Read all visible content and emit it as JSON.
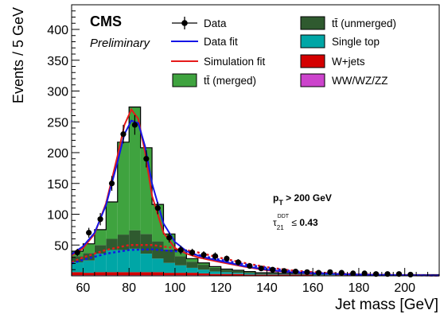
{
  "chart_data": {
    "type": "bar",
    "title": "",
    "xlabel": "Jet mass [GeV]",
    "ylabel": "Events / 5 GeV",
    "xlim": [
      55,
      215
    ],
    "ylim": [
      0,
      440
    ],
    "xticks": [
      60,
      80,
      100,
      120,
      140,
      160,
      180,
      200
    ],
    "yticks": [
      50,
      100,
      150,
      200,
      250,
      300,
      350,
      400
    ],
    "cms_label": "CMS",
    "cms_sublabel": "Preliminary",
    "annotations": {
      "pt_cut": "p_T > 200 GeV",
      "tau_cut": "τ21^DDT ≤ 0.43"
    },
    "legend": [
      {
        "name": "Data",
        "kind": "marker",
        "color": "#000000"
      },
      {
        "name": "tt̄ (unmerged)",
        "kind": "box",
        "color": "#2f5a2f"
      },
      {
        "name": "Data fit",
        "kind": "line",
        "color": "#1515e6"
      },
      {
        "name": "Single top",
        "kind": "box",
        "color": "#00a6a6"
      },
      {
        "name": "Simulation fit",
        "kind": "line",
        "color": "#e61a1a"
      },
      {
        "name": "W+jets",
        "kind": "box",
        "color": "#d40000"
      },
      {
        "name": "tt̄ (merged)",
        "kind": "box",
        "color": "#3fa33f"
      },
      {
        "name": "WW/WZ/ZZ",
        "kind": "box",
        "color": "#cc44cc"
      }
    ],
    "bin_edges": [
      55,
      60,
      65,
      70,
      75,
      80,
      85,
      90,
      95,
      100,
      105,
      110,
      115,
      120,
      125,
      130,
      135,
      140,
      145,
      150,
      155,
      160,
      165,
      170,
      175,
      180,
      185,
      190,
      195,
      200,
      205,
      210,
      215
    ],
    "stack": [
      {
        "name": "WW/WZ/ZZ",
        "color": "#cc44cc",
        "values": [
          1,
          1,
          1,
          1,
          1,
          1,
          1,
          1,
          1,
          1,
          1,
          1,
          0,
          0,
          0,
          0,
          0,
          0,
          0,
          0,
          0,
          0,
          0,
          0,
          0,
          0,
          0,
          0,
          0,
          0,
          0,
          0
        ]
      },
      {
        "name": "W+jets",
        "color": "#d40000",
        "values": [
          5,
          4,
          5,
          5,
          5,
          5,
          5,
          5,
          4,
          4,
          4,
          3,
          3,
          3,
          3,
          2,
          2,
          2,
          2,
          2,
          2,
          1,
          1,
          1,
          1,
          1,
          1,
          1,
          1,
          1,
          1,
          1
        ]
      },
      {
        "name": "Single top",
        "color": "#00a6a6",
        "values": [
          16,
          20,
          30,
          36,
          36,
          38,
          30,
          22,
          16,
          12,
          8,
          6,
          4,
          3,
          2,
          2,
          1,
          1,
          1,
          1,
          1,
          1,
          1,
          0,
          0,
          0,
          0,
          0,
          0,
          0,
          0,
          0
        ]
      },
      {
        "name": "tt̄ (unmerged)",
        "color": "#2f5a2f",
        "values": [
          10,
          12,
          14,
          18,
          25,
          30,
          32,
          28,
          22,
          15,
          10,
          8,
          6,
          4,
          3,
          2,
          2,
          2,
          1,
          1,
          1,
          1,
          1,
          1,
          1,
          1,
          1,
          1,
          1,
          1,
          1,
          1
        ]
      },
      {
        "name": "tt̄ (merged)",
        "color": "#3fa33f",
        "values": [
          8,
          15,
          25,
          60,
          150,
          200,
          140,
          60,
          25,
          10,
          5,
          3,
          2,
          1,
          1,
          1,
          0,
          0,
          0,
          0,
          0,
          0,
          0,
          0,
          0,
          0,
          0,
          0,
          0,
          0,
          0,
          0
        ]
      }
    ],
    "data": {
      "x": [
        57.5,
        62.5,
        67.5,
        72.5,
        77.5,
        82.5,
        87.5,
        92.5,
        97.5,
        102.5,
        107.5,
        112.5,
        117.5,
        122.5,
        127.5,
        132.5,
        137.5,
        142.5,
        147.5,
        152.5,
        157.5,
        162.5,
        167.5,
        172.5,
        177.5,
        182.5,
        187.5,
        192.5,
        197.5,
        202.5
      ],
      "y": [
        38,
        70,
        92,
        150,
        230,
        245,
        190,
        110,
        62,
        42,
        38,
        34,
        32,
        28,
        22,
        16,
        12,
        10,
        8,
        7,
        6,
        5,
        6,
        5,
        4,
        4,
        3,
        3,
        3,
        2
      ],
      "err": [
        6,
        8,
        10,
        12,
        15,
        16,
        14,
        10,
        8,
        7,
        6,
        6,
        6,
        5,
        5,
        4,
        4,
        3,
        3,
        3,
        3,
        2,
        2,
        2,
        2,
        2,
        2,
        2,
        2,
        2
      ]
    },
    "fits": {
      "data_fit": {
        "name": "Data fit",
        "color": "#1515e6",
        "x": [
          55,
          60,
          65,
          70,
          75,
          78,
          81,
          84,
          87,
          90,
          95,
          100,
          105,
          110,
          115,
          120,
          130,
          140,
          150,
          160,
          170,
          180,
          190,
          200,
          215
        ],
        "y": [
          35,
          48,
          70,
          115,
          185,
          230,
          252,
          248,
          210,
          150,
          85,
          55,
          40,
          33,
          28,
          24,
          16,
          10,
          6,
          4,
          3,
          2,
          1.5,
          1,
          0.5
        ]
      },
      "sim_fit": {
        "name": "Simulation fit",
        "color": "#e61a1a",
        "x": [
          55,
          60,
          65,
          70,
          75,
          78,
          81,
          84,
          87,
          90,
          95,
          100,
          105,
          110,
          115,
          120,
          130,
          140,
          150,
          160,
          170,
          180,
          190,
          200,
          215
        ],
        "y": [
          33,
          45,
          68,
          118,
          195,
          245,
          270,
          255,
          200,
          130,
          70,
          45,
          36,
          30,
          26,
          22,
          15,
          9,
          6,
          4,
          3,
          2,
          1.5,
          1,
          0.5
        ]
      },
      "data_bkg": {
        "color": "#1515e6",
        "x": [
          55,
          60,
          70,
          80,
          90,
          100,
          110,
          120,
          130,
          140,
          150,
          160,
          170,
          180,
          190,
          200,
          215
        ],
        "y": [
          20,
          26,
          36,
          42,
          43,
          40,
          34,
          26,
          19,
          13,
          8,
          5,
          3,
          2,
          1.5,
          1,
          0.5
        ]
      },
      "sim_bkg": {
        "color": "#e61a1a",
        "x": [
          55,
          60,
          70,
          80,
          90,
          100,
          110,
          120,
          130,
          140,
          150,
          160,
          170,
          180,
          190,
          200,
          215
        ],
        "y": [
          22,
          30,
          42,
          50,
          50,
          45,
          38,
          29,
          21,
          14,
          9,
          6,
          4,
          2.5,
          1.5,
          1,
          0.5
        ]
      }
    }
  }
}
